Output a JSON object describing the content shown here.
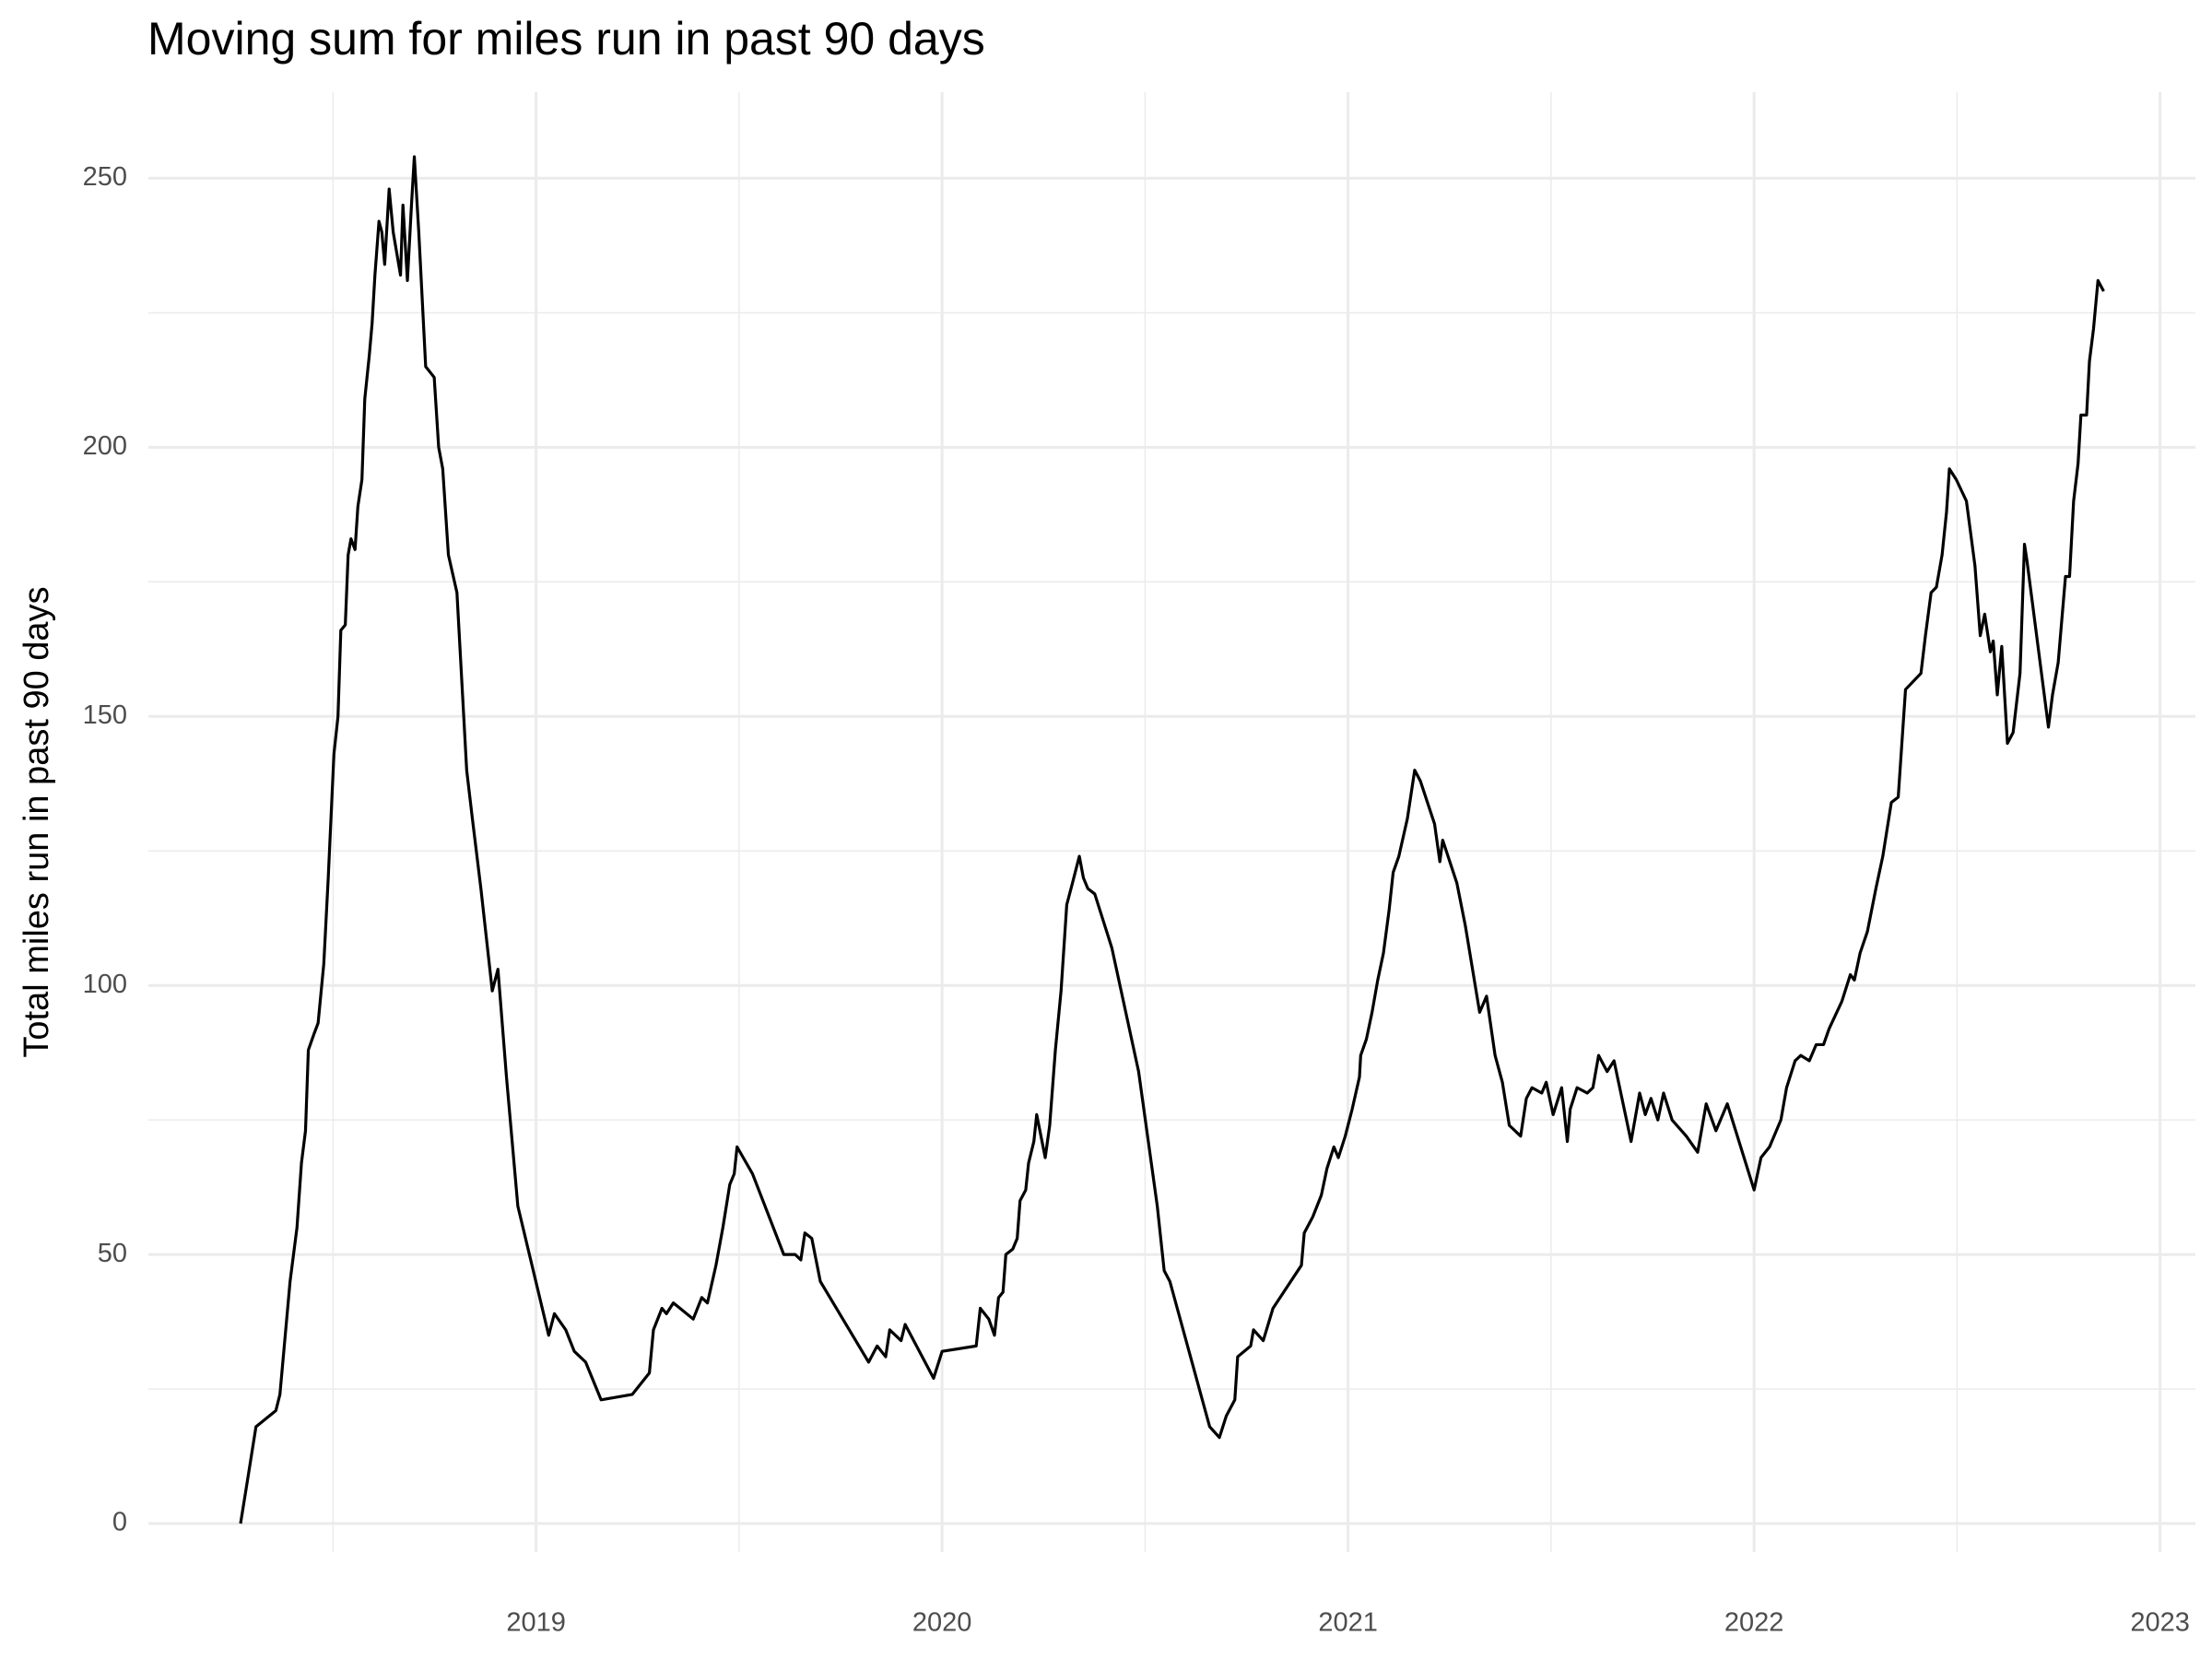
{
  "chart_data": {
    "type": "line",
    "title": "Moving sum for miles run in past 90 days",
    "y_label": "Total miles run in past 90 days",
    "color": "#000000",
    "grid": true,
    "xlim": [
      2018.045,
      2023.087
    ],
    "xticks": [
      2019,
      2020,
      2021,
      2022,
      2023
    ],
    "ylim": [
      -5.3,
      266
    ],
    "yticks": [
      0,
      50,
      100,
      150,
      200,
      250
    ],
    "x": [
      2018.272,
      2018.289,
      2018.31,
      2018.359,
      2018.369,
      2018.394,
      2018.411,
      2018.422,
      2018.432,
      2018.439,
      2018.453,
      2018.463,
      2018.477,
      2018.488,
      2018.502,
      2018.512,
      2018.519,
      2018.53,
      2018.537,
      2018.544,
      2018.554,
      2018.561,
      2018.571,
      2018.578,
      2018.589,
      2018.596,
      2018.603,
      2018.613,
      2018.62,
      2018.627,
      2018.638,
      2018.648,
      2018.666,
      2018.672,
      2018.683,
      2018.693,
      2018.7,
      2018.711,
      2018.728,
      2018.749,
      2018.76,
      2018.77,
      2018.784,
      2018.805,
      2018.829,
      2018.843,
      2018.864,
      2018.892,
      2018.906,
      2018.927,
      2018.955,
      2019.031,
      2019.045,
      2019.073,
      2019.094,
      2019.122,
      2019.16,
      2019.237,
      2019.279,
      2019.289,
      2019.31,
      2019.321,
      2019.338,
      2019.387,
      2019.408,
      2019.422,
      2019.443,
      2019.46,
      2019.477,
      2019.488,
      2019.495,
      2019.533,
      2019.61,
      2019.638,
      2019.652,
      2019.662,
      2019.679,
      2019.7,
      2019.819,
      2019.84,
      2019.861,
      2019.871,
      2019.899,
      2019.909,
      2019.979,
      2020.0,
      2020.084,
      2020.094,
      2020.115,
      2020.129,
      2020.139,
      2020.15,
      2020.157,
      2020.174,
      2020.185,
      2020.192,
      2020.206,
      2020.213,
      2020.226,
      2020.233,
      2020.254,
      2020.265,
      2020.272,
      2020.279,
      2020.293,
      2020.307,
      2020.321,
      2020.338,
      2020.348,
      2020.359,
      2020.376,
      2020.418,
      2020.484,
      2020.53,
      2020.547,
      2020.561,
      2020.659,
      2020.683,
      2020.7,
      2020.721,
      2020.728,
      2020.76,
      2020.767,
      2020.791,
      2020.815,
      2020.885,
      2020.892,
      2020.913,
      2020.934,
      2020.948,
      2020.965,
      2020.976,
      2020.993,
      2021.01,
      2021.028,
      2021.031,
      2021.045,
      2021.059,
      2021.073,
      2021.087,
      2021.101,
      2021.111,
      2021.125,
      2021.146,
      2021.164,
      2021.178,
      2021.213,
      2021.226,
      2021.233,
      2021.268,
      2021.289,
      2021.324,
      2021.341,
      2021.362,
      2021.38,
      2021.397,
      2021.425,
      2021.439,
      2021.453,
      2021.477,
      2021.488,
      2021.505,
      2021.526,
      2021.54,
      2021.547,
      2021.564,
      2021.589,
      2021.603,
      2021.617,
      2021.638,
      2021.655,
      2021.697,
      2021.718,
      2021.732,
      2021.746,
      2021.763,
      2021.777,
      2021.798,
      2021.833,
      2021.861,
      2021.882,
      2021.906,
      2021.934,
      2022.0,
      2022.017,
      2022.038,
      2022.066,
      2022.08,
      2022.101,
      2022.115,
      2022.136,
      2022.153,
      2022.171,
      2022.185,
      2022.216,
      2022.237,
      2022.247,
      2022.261,
      2022.279,
      2022.3,
      2022.317,
      2022.338,
      2022.355,
      2022.373,
      2022.411,
      2022.422,
      2022.436,
      2022.449,
      2022.463,
      2022.474,
      2022.481,
      2022.498,
      2022.523,
      2022.544,
      2022.557,
      2022.568,
      2022.582,
      2022.589,
      2022.599,
      2022.61,
      2022.624,
      2022.638,
      2022.655,
      2022.666,
      2022.672,
      2022.725,
      2022.735,
      2022.749,
      2022.767,
      2022.777,
      2022.787,
      2022.798,
      2022.805,
      2022.819,
      2022.826,
      2022.836,
      2022.847,
      2022.861
    ],
    "values": [
      0,
      8,
      18,
      21,
      24,
      45,
      55,
      67,
      73,
      88,
      91,
      93,
      104,
      120,
      143,
      150,
      166,
      167,
      180,
      183,
      181,
      189,
      194,
      209,
      217,
      223,
      232,
      242,
      240,
      234,
      248,
      240,
      232,
      245,
      231,
      245,
      254,
      240,
      215,
      213,
      200,
      196,
      180,
      173,
      140,
      131,
      118,
      99,
      103,
      83,
      59,
      35,
      39,
      36,
      32,
      30,
      23,
      24,
      28,
      36,
      40,
      39,
      41,
      38,
      42,
      41,
      48,
      55,
      63,
      65,
      70,
      65,
      50,
      50,
      49,
      54,
      53,
      45,
      30,
      33,
      31,
      36,
      34,
      37,
      27,
      32,
      33,
      40,
      38,
      35,
      42,
      43,
      50,
      51,
      53,
      60,
      62,
      67,
      71,
      76,
      68,
      74,
      81,
      88,
      99,
      115,
      119,
      124,
      120,
      118,
      117,
      107,
      84,
      59,
      47,
      45,
      18,
      16,
      20,
      23,
      31,
      33,
      36,
      34,
      40,
      48,
      54,
      57,
      61,
      66,
      70,
      68,
      72,
      77,
      83,
      87,
      90,
      95,
      101,
      106,
      114,
      121,
      124,
      131,
      140,
      138,
      130,
      123,
      127,
      119,
      111,
      95,
      98,
      87,
      82,
      74,
      72,
      79,
      81,
      80,
      82,
      76,
      81,
      71,
      77,
      81,
      80,
      81,
      87,
      84,
      86,
      71,
      80,
      76,
      79,
      75,
      80,
      75,
      72,
      69,
      78,
      73,
      78,
      62,
      68,
      70,
      75,
      81,
      86,
      87,
      86,
      89,
      89,
      92,
      97,
      102,
      101,
      106,
      110,
      118,
      124,
      134,
      135,
      155,
      158,
      165,
      173,
      174,
      180,
      188,
      196,
      194,
      190,
      178,
      165,
      169,
      162,
      164,
      154,
      163,
      145,
      147,
      158,
      182,
      179,
      148,
      154,
      160,
      176,
      176,
      190,
      197,
      206,
      206,
      216,
      222,
      231,
      229
    ]
  }
}
